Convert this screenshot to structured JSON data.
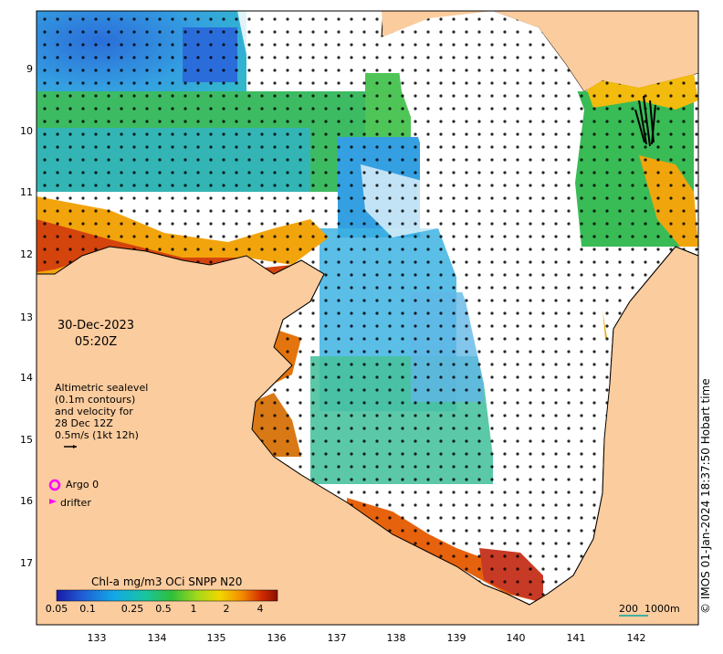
{
  "map": {
    "date_line1": "30-Dec-2023",
    "date_line2": "05:20Z",
    "altimetry_note": [
      "Altimetric sealevel",
      "(0.1m contours)",
      "and velocity for",
      "28 Dec 12Z",
      "0.5m/s (1kt 12h)"
    ],
    "legend": {
      "argo_label": "Argo 0",
      "drifter_label": "drifter",
      "argo_color": "#ff00ff",
      "drifter_color": "#ff00ff"
    },
    "y_ticks": [
      "9",
      "10",
      "11",
      "12",
      "13",
      "14",
      "15",
      "16",
      "17"
    ],
    "x_ticks": [
      "133",
      "134",
      "135",
      "136",
      "137",
      "138",
      "139",
      "140",
      "141",
      "142"
    ],
    "colorbar": {
      "title": "Chl-a mg/m3 OCi SNPP N20",
      "ticks": [
        "0.05",
        "0.1",
        "0.25",
        "0.5",
        "1",
        "2",
        "4"
      ]
    },
    "scale_bar": "200  1000m",
    "timestamp": "© IMOS 01-Jan-2024 18:37:50 Hobart time",
    "colors": {
      "land": "#fbcc9e",
      "ocean_nodata": "#ffffff",
      "coast": "#000000"
    }
  }
}
